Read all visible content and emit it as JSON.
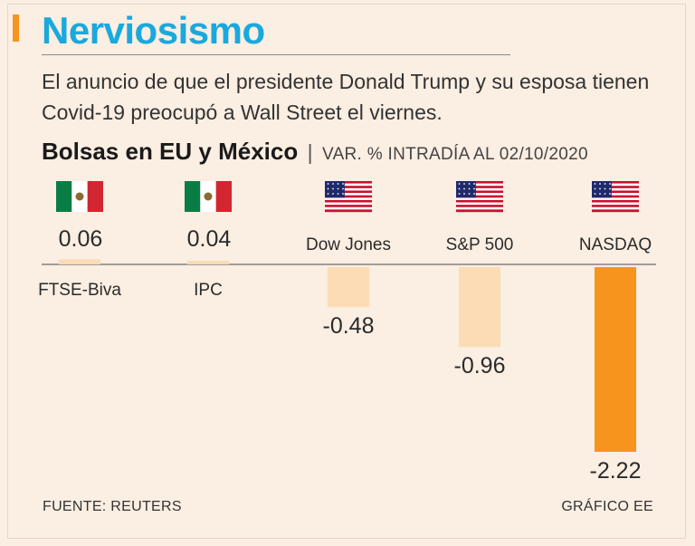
{
  "header": {
    "title": "Nerviosismo",
    "subtitle": "El anuncio de que el presidente Donald Trump y su esposa tienen Covid-19 preocupó a Wall Street el viernes.",
    "chart_title": "Bolsas en EU y México",
    "separator": "|",
    "chart_subtitle": "VAR. % INTRADÍA AL 02/10/2020"
  },
  "footer": {
    "source": "FUENTE: REUTERS",
    "credit": "GRÁFICO EE"
  },
  "colors": {
    "title": "#19a9dd",
    "accent": "#f7941d",
    "bar_light": "#fcdcb4",
    "bar_strong": "#f7941d",
    "background": "#fbeee2"
  },
  "chart_data": {
    "type": "bar",
    "title": "Bolsas en EU y México",
    "subtitle": "VAR. % INTRADÍA AL 02/10/2020",
    "categories": [
      "FTSE-Biva",
      "IPC",
      "Dow Jones",
      "S&P 500",
      "NASDAQ"
    ],
    "values": [
      0.06,
      0.04,
      -0.48,
      -0.96,
      -2.22
    ],
    "value_labels": [
      "0.06",
      "0.04",
      "-0.48",
      "-0.96",
      "-2.22"
    ],
    "flags": [
      "mexico-flag",
      "mexico-flag",
      "usa-flag",
      "usa-flag",
      "usa-flag"
    ],
    "highlight": "NASDAQ",
    "ylim": [
      -2.22,
      0.06
    ]
  }
}
